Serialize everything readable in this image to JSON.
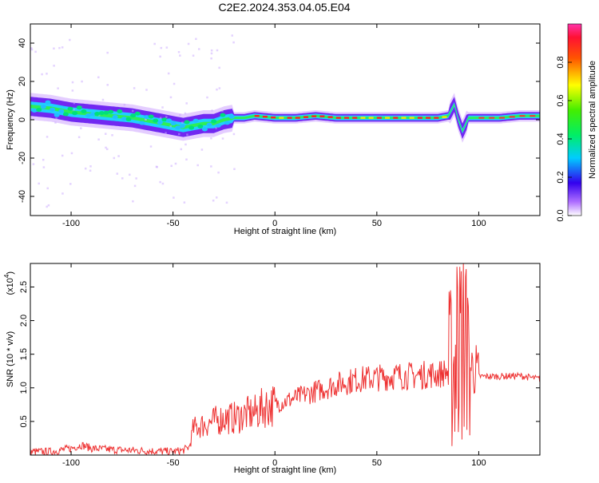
{
  "figure": {
    "title": "C2E2.2024.353.04.05.E04"
  },
  "chart_data": [
    {
      "type": "heatmap",
      "xlabel": "Height of straight line (km)",
      "ylabel": "Frequency (Hz)",
      "xlim": [
        -120,
        130
      ],
      "ylim": [
        -50,
        50
      ],
      "xticks": [
        -100,
        -50,
        0,
        50,
        100
      ],
      "yticks": [
        -40,
        -20,
        0,
        20,
        40
      ],
      "grid": false,
      "ridge": {
        "x": [
          -120,
          -110,
          -100,
          -90,
          -80,
          -70,
          -60,
          -50,
          -45,
          -40,
          -35,
          -30,
          -25,
          -20,
          -15,
          -10,
          0,
          10,
          20,
          30,
          40,
          50,
          60,
          70,
          80,
          85,
          88,
          90,
          92,
          95,
          100,
          110,
          120,
          130
        ],
        "y": [
          7,
          6,
          4,
          3,
          2,
          1,
          -1,
          -3,
          -4,
          -3,
          -2,
          -2,
          0,
          1,
          1,
          2,
          1,
          1,
          2,
          1,
          1,
          1,
          1,
          1,
          1,
          2,
          8,
          0,
          -6,
          1,
          1,
          1,
          2,
          2
        ]
      },
      "colorbar": {
        "label": "Normalized spectral amplitude",
        "range": [
          0.0,
          1.0
        ],
        "ticks": [
          0.0,
          0.2,
          0.4,
          0.6,
          0.8
        ]
      }
    },
    {
      "type": "line",
      "xlabel": "Height of straight line (km)",
      "ylabel": "SNR (10 * v/v)",
      "scale_label": "(x10",
      "scale_exp": "4",
      "xlim": [
        -120,
        130
      ],
      "ylim": [
        0,
        2.85
      ],
      "xticks": [
        -100,
        -50,
        0,
        50,
        100
      ],
      "yticks": [
        0.5,
        1.0,
        1.5,
        2.0,
        2.5
      ],
      "grid": false,
      "series": [
        {
          "color": "#ee3333",
          "x": [
            -120,
            -110,
            -100,
            -95,
            -90,
            -80,
            -70,
            -60,
            -50,
            -45,
            -42,
            -40,
            -35,
            -30,
            -25,
            -20,
            -15,
            -10,
            -5,
            0,
            5,
            10,
            20,
            30,
            40,
            50,
            60,
            70,
            75,
            80,
            85,
            87,
            90,
            92,
            95,
            98,
            100,
            110,
            120,
            130
          ],
          "y": [
            0.05,
            0.05,
            0.1,
            0.15,
            0.1,
            0.08,
            0.07,
            0.06,
            0.05,
            0.07,
            0.12,
            0.4,
            0.45,
            0.5,
            0.55,
            0.55,
            0.6,
            0.62,
            0.72,
            0.75,
            0.8,
            0.85,
            0.95,
            1.05,
            1.12,
            1.15,
            1.18,
            1.18,
            1.2,
            1.2,
            1.25,
            1.3,
            1.5,
            1.7,
            1.3,
            1.3,
            1.17,
            1.17,
            1.18,
            1.13
          ]
        }
      ]
    }
  ]
}
